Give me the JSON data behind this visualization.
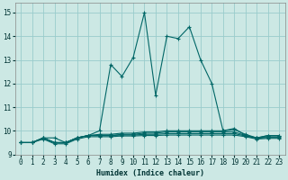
{
  "xlabel": "Humidex (Indice chaleur)",
  "bg_color": "#cce8e4",
  "grid_color": "#99cccc",
  "line_color": "#006666",
  "xlim": [
    -0.5,
    23.5
  ],
  "ylim": [
    9,
    15.4
  ],
  "yticks": [
    9,
    10,
    11,
    12,
    13,
    14,
    15
  ],
  "xticks": [
    0,
    1,
    2,
    3,
    4,
    5,
    6,
    7,
    8,
    9,
    10,
    11,
    12,
    13,
    14,
    15,
    16,
    17,
    18,
    19,
    20,
    21,
    22,
    23
  ],
  "line1": [
    9.5,
    9.5,
    9.7,
    9.7,
    9.5,
    9.7,
    9.8,
    10.0,
    12.8,
    12.3,
    13.1,
    15.0,
    11.5,
    14.0,
    13.9,
    14.4,
    13.0,
    12.0,
    10.0,
    10.1,
    9.8,
    9.7,
    9.8,
    9.8
  ],
  "line2": [
    9.5,
    9.5,
    9.7,
    9.5,
    9.5,
    9.7,
    9.8,
    9.85,
    9.85,
    9.9,
    9.9,
    9.95,
    9.95,
    10.0,
    10.0,
    10.0,
    10.0,
    10.0,
    10.0,
    10.05,
    9.85,
    9.7,
    9.8,
    9.8
  ],
  "line3": [
    9.5,
    9.5,
    9.7,
    9.5,
    9.5,
    9.7,
    9.8,
    9.8,
    9.8,
    9.85,
    9.85,
    9.9,
    9.9,
    9.95,
    9.95,
    9.95,
    9.95,
    9.95,
    9.95,
    9.95,
    9.8,
    9.7,
    9.75,
    9.75
  ],
  "line4": [
    9.5,
    9.5,
    9.7,
    9.5,
    9.5,
    9.7,
    9.8,
    9.8,
    9.8,
    9.82,
    9.82,
    9.85,
    9.85,
    9.88,
    9.88,
    9.88,
    9.88,
    9.88,
    9.88,
    9.88,
    9.78,
    9.68,
    9.72,
    9.72
  ],
  "line5": [
    9.5,
    9.5,
    9.65,
    9.45,
    9.45,
    9.65,
    9.75,
    9.75,
    9.75,
    9.78,
    9.78,
    9.8,
    9.8,
    9.82,
    9.82,
    9.82,
    9.82,
    9.82,
    9.82,
    9.82,
    9.75,
    9.65,
    9.68,
    9.68
  ]
}
